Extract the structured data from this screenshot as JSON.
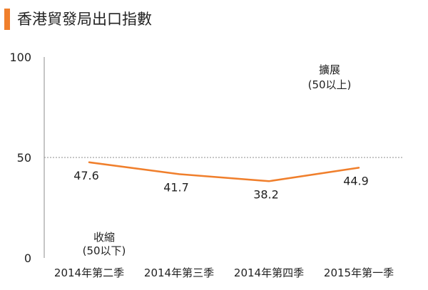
{
  "title": "香港貿發局出口指數",
  "colors": {
    "line": "#F07F2C",
    "accent": "#F07F2C",
    "threshold": "#8C8C8C",
    "axis": "#8C8C8C",
    "text": "#222222"
  },
  "annotations": {
    "expansion_line1": "擴展",
    "expansion_line2": "(50以上)",
    "contraction_line1": "收縮",
    "contraction_line2": "(50以下)"
  },
  "chart_data": {
    "type": "line",
    "title": "香港貿發局出口指數",
    "categories": [
      "2014年第二季",
      "2014年第三季",
      "2014年第四季",
      "2015年第一季"
    ],
    "values": [
      47.6,
      41.7,
      38.2,
      44.9
    ],
    "data_labels": [
      "47.6",
      "41.7",
      "38.2",
      "44.9"
    ],
    "y_ticks": [
      "0",
      "50",
      "100"
    ],
    "ylim": [
      0,
      100
    ],
    "reference_line": 50,
    "grid": false,
    "legend": "none"
  }
}
